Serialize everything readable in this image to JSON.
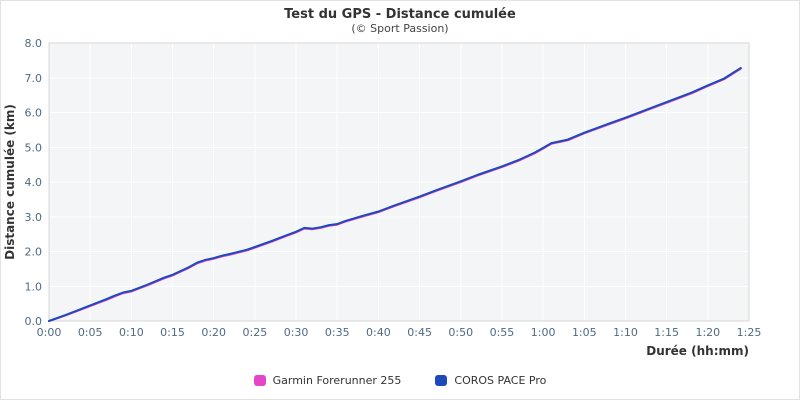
{
  "title": "Test du GPS - Distance cumulée",
  "subtitle": "(© Sport Passion)",
  "chart_data": {
    "type": "line",
    "title": "Test du GPS - Distance cumulée",
    "subtitle": "(© Sport Passion)",
    "xlabel": "Durée (hh:mm)",
    "ylabel": "Distance cumulée (km)",
    "ylim": [
      0,
      8
    ],
    "y_ticks": [
      0,
      1,
      2,
      3,
      4,
      5,
      6,
      7,
      8
    ],
    "x_tick_labels": [
      "0:00",
      "0:05",
      "0:10",
      "0:15",
      "0:20",
      "0:25",
      "0:30",
      "0:35",
      "0:40",
      "0:45",
      "0:50",
      "0:55",
      "1:00",
      "1:05",
      "1:10",
      "1:15",
      "1:20",
      "1:25"
    ],
    "x_tick_minutes": [
      0,
      5,
      10,
      15,
      20,
      25,
      30,
      35,
      40,
      45,
      50,
      55,
      60,
      65,
      70,
      75,
      80,
      85
    ],
    "grid": true,
    "legend_position": "bottom",
    "plot_bg": "#f4f5f6",
    "grid_color": "#ffffff",
    "border_color": "#d6d6d6",
    "series": [
      {
        "name": "Garmin Forerunner 255",
        "color": "#e446c8",
        "x": [
          0,
          2,
          5,
          7,
          8,
          9,
          10,
          12,
          14,
          15,
          17,
          18,
          19,
          20,
          21,
          22,
          24,
          25,
          27,
          29,
          30,
          31,
          32,
          33,
          34,
          35,
          36,
          38,
          40,
          42,
          45,
          47,
          50,
          52,
          55,
          57,
          59,
          60,
          61,
          63,
          65,
          68,
          70,
          73,
          75,
          78,
          80,
          82,
          84
        ],
        "values": [
          0,
          0.16,
          0.43,
          0.61,
          0.71,
          0.8,
          0.85,
          1.03,
          1.23,
          1.31,
          1.53,
          1.66,
          1.74,
          1.79,
          1.86,
          1.91,
          2.03,
          2.11,
          2.28,
          2.46,
          2.55,
          2.66,
          2.64,
          2.68,
          2.74,
          2.77,
          2.86,
          3.0,
          3.13,
          3.31,
          3.56,
          3.74,
          4.0,
          4.18,
          4.43,
          4.61,
          4.83,
          4.96,
          5.1,
          5.2,
          5.4,
          5.66,
          5.83,
          6.1,
          6.28,
          6.55,
          6.76,
          6.96,
          7.26
        ]
      },
      {
        "name": "COROS PACE Pro",
        "color": "#1d49bd",
        "x": [
          0,
          2,
          5,
          7,
          8,
          9,
          10,
          12,
          14,
          15,
          17,
          18,
          19,
          20,
          21,
          22,
          24,
          25,
          27,
          29,
          30,
          31,
          32,
          33,
          34,
          35,
          36,
          38,
          40,
          42,
          45,
          47,
          50,
          52,
          55,
          57,
          59,
          60,
          61,
          63,
          65,
          68,
          70,
          73,
          75,
          78,
          80,
          82,
          84
        ],
        "values": [
          0,
          0.17,
          0.45,
          0.63,
          0.73,
          0.82,
          0.87,
          1.05,
          1.25,
          1.33,
          1.55,
          1.68,
          1.76,
          1.81,
          1.88,
          1.93,
          2.05,
          2.13,
          2.3,
          2.48,
          2.57,
          2.68,
          2.66,
          2.7,
          2.76,
          2.79,
          2.88,
          3.02,
          3.15,
          3.33,
          3.58,
          3.76,
          4.02,
          4.2,
          4.45,
          4.63,
          4.85,
          4.98,
          5.12,
          5.22,
          5.42,
          5.68,
          5.85,
          6.12,
          6.3,
          6.57,
          6.78,
          6.98,
          7.28
        ]
      }
    ]
  }
}
